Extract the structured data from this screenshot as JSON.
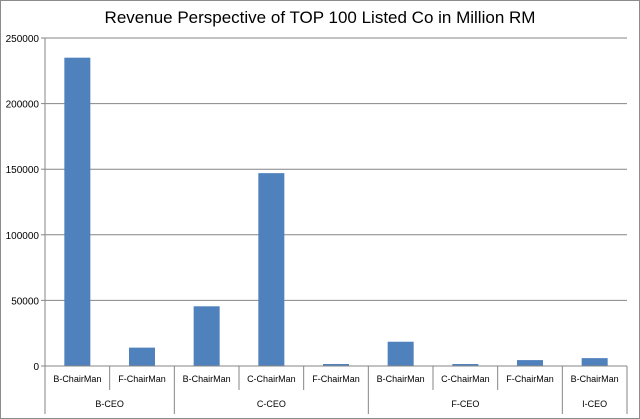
{
  "chart_data": {
    "type": "bar",
    "title": "Revenue Perspective of TOP 100 Listed Co in Million RM",
    "xlabel": "",
    "ylabel": "",
    "ylim": [
      0,
      250000
    ],
    "yticks": [
      0,
      50000,
      100000,
      150000,
      200000,
      250000
    ],
    "grid": true,
    "legend": "none",
    "bar_color": "#4f81bd",
    "categories": [
      {
        "group": "B-CEO",
        "label": "B-ChairMan",
        "value": 235000
      },
      {
        "group": "B-CEO",
        "label": "F-ChairMan",
        "value": 14000
      },
      {
        "group": "C-CEO",
        "label": "B-ChairMan",
        "value": 45500
      },
      {
        "group": "C-CEO",
        "label": "C-ChairMan",
        "value": 147000
      },
      {
        "group": "C-CEO",
        "label": "F-ChairMan",
        "value": 1500
      },
      {
        "group": "F-CEO",
        "label": "B-ChairMan",
        "value": 18500
      },
      {
        "group": "F-CEO",
        "label": "C-ChairMan",
        "value": 1500
      },
      {
        "group": "F-CEO",
        "label": "F-ChairMan",
        "value": 4500
      },
      {
        "group": "I-CEO",
        "label": "B-ChairMan",
        "value": 6000
      }
    ],
    "groups": [
      "B-CEO",
      "C-CEO",
      "F-CEO",
      "I-CEO"
    ]
  }
}
